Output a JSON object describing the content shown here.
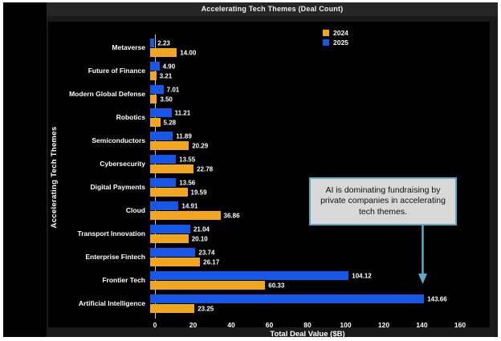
{
  "window": {
    "frame_color": "#ffffff",
    "inner_background": "#1a1a1a",
    "panel_background": "#000000"
  },
  "title": "Accelerating Tech Themes (Deal Count)",
  "legend": {
    "items": [
      {
        "label": "2024",
        "color": "#f2a51f"
      },
      {
        "label": "2025",
        "color": "#1757e8"
      }
    ]
  },
  "annotation": {
    "text": "AI is dominating fundraising by private companies in accelerating tech themes.",
    "border_color": "#56aecb",
    "background": "#d8d8d8",
    "arrow_color": "#56aecb"
  },
  "chart_data": {
    "type": "bar",
    "orientation": "horizontal",
    "title": "Accelerating Tech Themes (Deal Count)",
    "xlabel": "Total Deal Value ($B)",
    "ylabel": "Accelerating Tech Themes",
    "xlim": [
      0,
      160
    ],
    "xticks": [
      0,
      20,
      40,
      60,
      80,
      100,
      120,
      140,
      160
    ],
    "grid": false,
    "legend_position": "upper center",
    "value_labels": true,
    "categories": [
      "Metaverse",
      "Future of Finance",
      "Modern Global Defense",
      "Robotics",
      "Semiconductors",
      "Cybersecurity",
      "Digital Payments",
      "Cloud",
      "Transport Innovation",
      "Enterprise Fintech",
      "Frontier Tech",
      "Artificial Intelligence"
    ],
    "series": [
      {
        "name": "2025",
        "color": "#1757e8",
        "values": [
          2.23,
          4.9,
          7.01,
          11.21,
          11.89,
          13.55,
          13.56,
          14.91,
          21.04,
          23.74,
          104.12,
          143.66
        ]
      },
      {
        "name": "2024",
        "color": "#f2a51f",
        "values": [
          14.0,
          3.21,
          3.5,
          5.28,
          20.29,
          22.78,
          19.59,
          36.86,
          20.1,
          26.17,
          60.33,
          23.25
        ]
      }
    ]
  }
}
